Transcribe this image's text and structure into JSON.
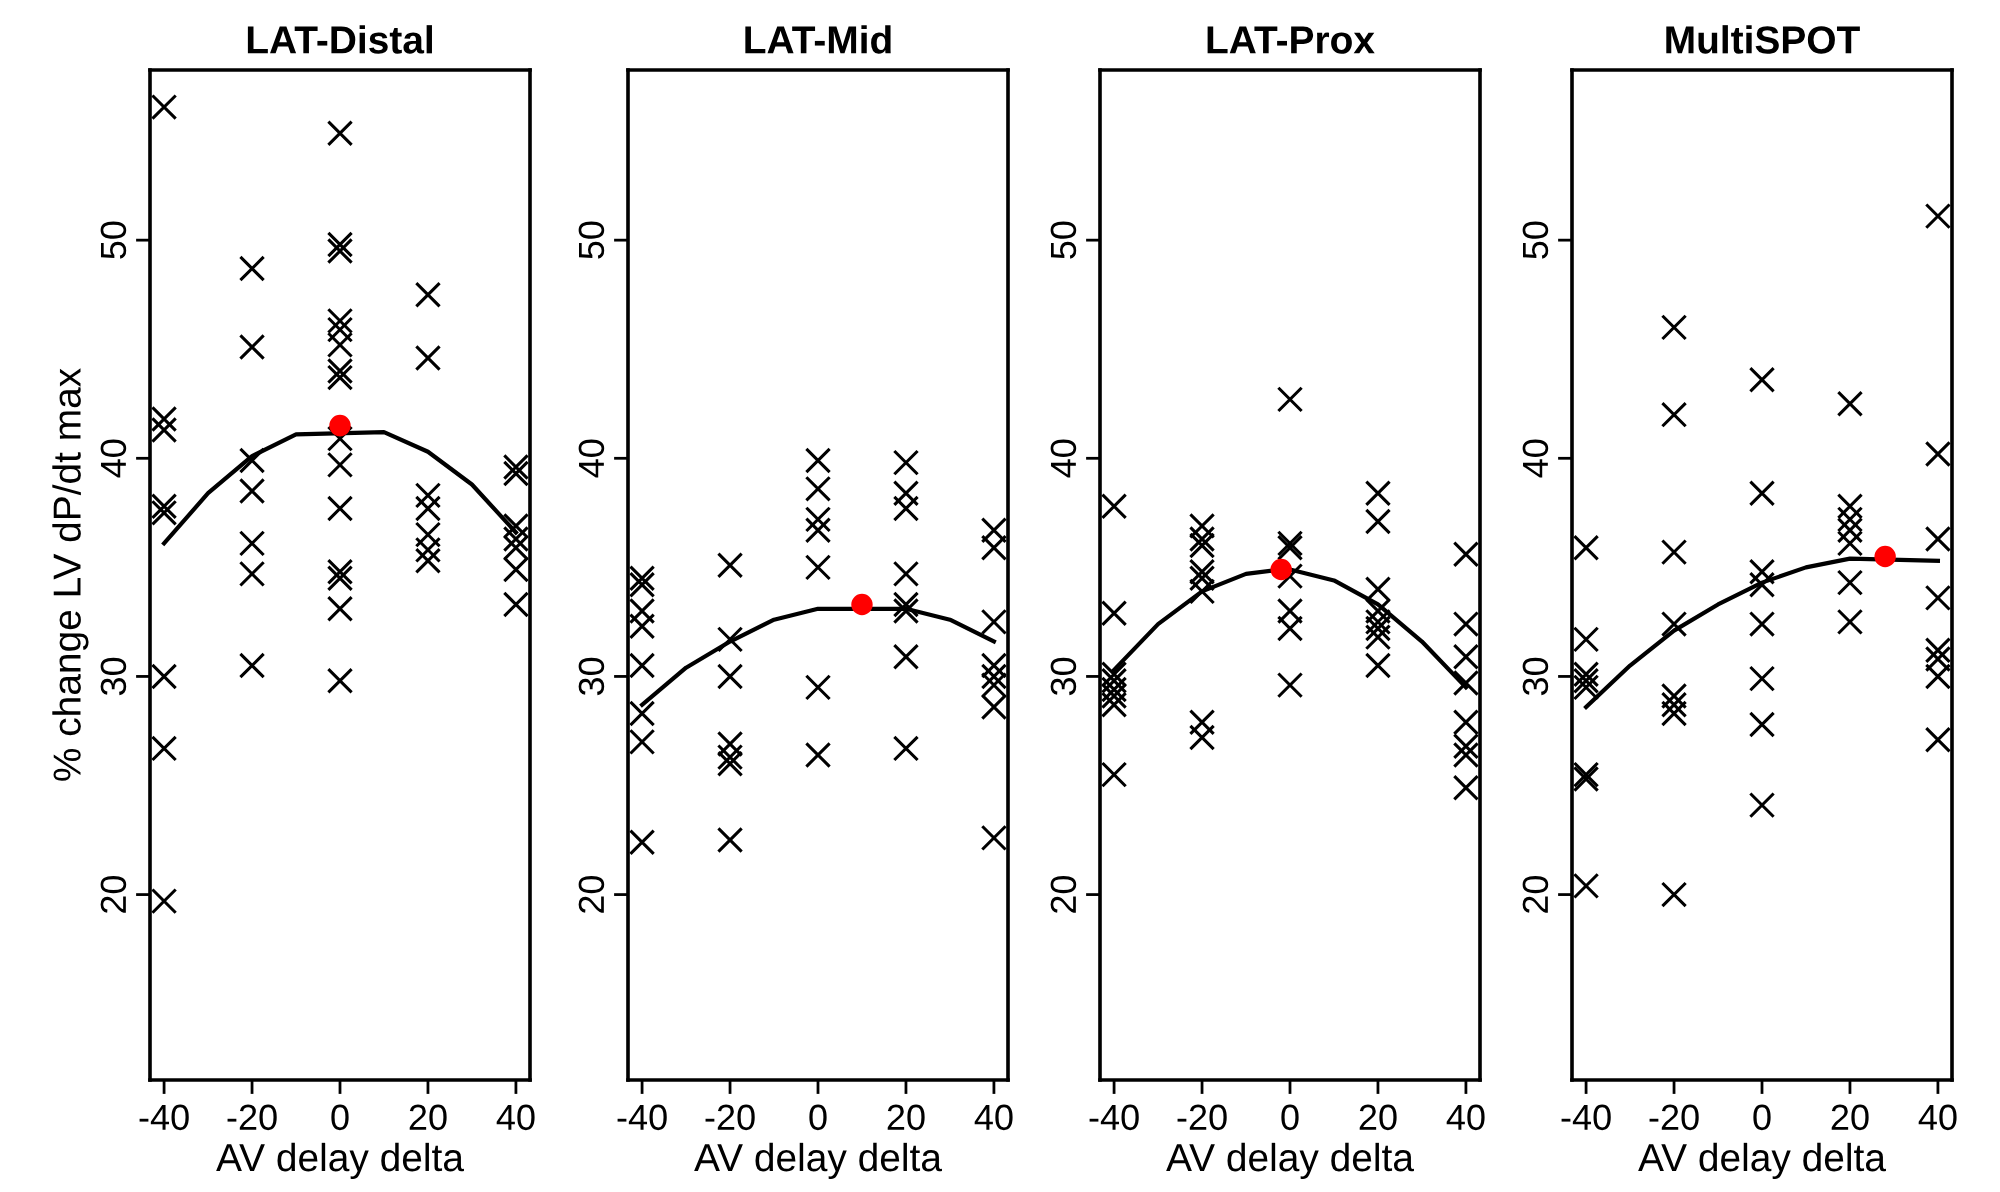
{
  "chart_data": [
    {
      "type": "scatter",
      "title": "LAT-Distal",
      "xlabel": "AV delay delta",
      "ylabel": "% change LV dP/dt max",
      "xlim": [
        -43.2,
        43.2
      ],
      "xticks": [
        -40,
        -20,
        0,
        20,
        40
      ],
      "ylim": [
        11.5,
        57.8
      ],
      "yticks": [
        20,
        30,
        40,
        50
      ],
      "grid": false,
      "legend": false,
      "series": [
        {
          "type": "scatter",
          "marker": "cross",
          "color": "#000000",
          "x": [
            -40,
            -40,
            -40,
            -40,
            -40,
            -40,
            -40,
            -40,
            -20,
            -20,
            -20,
            -20,
            -20,
            -20,
            -20,
            0,
            0,
            0,
            0,
            0,
            0,
            0,
            0,
            0,
            0,
            0,
            0,
            0,
            0,
            0,
            20,
            20,
            20,
            20,
            20,
            20,
            20,
            40,
            40,
            40,
            40,
            40,
            40,
            40
          ],
          "values": [
            56.1,
            41.8,
            41.3,
            37.8,
            37.5,
            30.0,
            26.7,
            19.7,
            48.7,
            45.1,
            39.9,
            38.5,
            36.1,
            34.7,
            30.5,
            54.9,
            49.8,
            49.5,
            46.3,
            45.9,
            45.2,
            44.0,
            43.7,
            40.9,
            39.7,
            37.7,
            34.8,
            34.5,
            33.1,
            29.8,
            47.5,
            44.6,
            38.3,
            37.7,
            36.5,
            35.8,
            35.3,
            39.6,
            39.3,
            36.9,
            36.3,
            35.9,
            34.9,
            33.3
          ]
        },
        {
          "type": "line",
          "color": "#000000",
          "x": [
            -40,
            -30,
            -20,
            -10,
            10,
            20,
            30,
            40
          ],
          "values": [
            36.1,
            38.4,
            40.1,
            41.1,
            41.2,
            40.3,
            38.8,
            36.6
          ]
        },
        {
          "type": "scatter",
          "marker": "circle",
          "color": "#ff0000",
          "x": [
            0
          ],
          "values": [
            41.5
          ]
        }
      ]
    },
    {
      "type": "scatter",
      "title": "LAT-Mid",
      "xlabel": "AV delay delta",
      "xlim": [
        -43.2,
        43.2
      ],
      "xticks": [
        -40,
        -20,
        0,
        20,
        40
      ],
      "ylim": [
        11.5,
        57.8
      ],
      "yticks": [
        20,
        30,
        40,
        50
      ],
      "grid": false,
      "legend": false,
      "series": [
        {
          "type": "scatter",
          "marker": "cross",
          "color": "#000000",
          "x": [
            -40,
            -40,
            -40,
            -40,
            -40,
            -40,
            -40,
            -40,
            -20,
            -20,
            -20,
            -20,
            -20,
            -20,
            -20,
            0,
            0,
            0,
            0,
            0,
            0,
            0,
            20,
            20,
            20,
            20,
            20,
            20,
            20,
            20,
            40,
            40,
            40,
            40,
            40,
            40,
            40,
            40
          ],
          "values": [
            34.5,
            34.2,
            33.0,
            32.3,
            30.5,
            28.3,
            27.0,
            22.4,
            35.1,
            31.7,
            30.0,
            26.9,
            26.3,
            26.0,
            22.5,
            39.9,
            38.6,
            37.2,
            36.7,
            35.0,
            29.5,
            26.4,
            39.8,
            38.4,
            37.7,
            34.7,
            33.3,
            33.0,
            30.9,
            26.7,
            36.7,
            35.9,
            32.5,
            30.5,
            30.0,
            29.6,
            28.6,
            22.6
          ]
        },
        {
          "type": "line",
          "color": "#000000",
          "x": [
            -40,
            -30,
            -20,
            -10,
            0,
            20,
            30,
            40
          ],
          "values": [
            28.7,
            30.4,
            31.6,
            32.6,
            33.1,
            33.1,
            32.6,
            31.6
          ]
        },
        {
          "type": "scatter",
          "marker": "circle",
          "color": "#ff0000",
          "x": [
            10
          ],
          "values": [
            33.3
          ]
        }
      ]
    },
    {
      "type": "scatter",
      "title": "LAT-Prox",
      "xlabel": "AV delay delta",
      "xlim": [
        -43.2,
        43.2
      ],
      "xticks": [
        -40,
        -20,
        0,
        20,
        40
      ],
      "ylim": [
        11.5,
        57.8
      ],
      "yticks": [
        20,
        30,
        40,
        50
      ],
      "grid": false,
      "legend": false,
      "series": [
        {
          "type": "scatter",
          "marker": "cross",
          "color": "#000000",
          "x": [
            -40,
            -40,
            -40,
            -40,
            -40,
            -40,
            -40,
            -40,
            -20,
            -20,
            -20,
            -20,
            -20,
            -20,
            -20,
            -20,
            0,
            0,
            0,
            0,
            0,
            0,
            0,
            20,
            20,
            20,
            20,
            20,
            20,
            20,
            20,
            40,
            40,
            40,
            40,
            40,
            40,
            40,
            40
          ],
          "values": [
            37.8,
            32.9,
            30.1,
            29.8,
            29.4,
            29.1,
            28.7,
            25.5,
            36.9,
            36.3,
            36.0,
            34.8,
            34.5,
            33.9,
            27.9,
            27.2,
            42.7,
            36.1,
            35.9,
            34.6,
            33.0,
            32.2,
            29.6,
            38.4,
            37.1,
            34.0,
            33.0,
            32.5,
            32.2,
            31.8,
            30.5,
            35.6,
            32.4,
            30.9,
            29.7,
            27.9,
            26.8,
            26.4,
            24.9
          ]
        },
        {
          "type": "line",
          "color": "#000000",
          "x": [
            -40,
            -30,
            -20,
            -10,
            -2,
            0,
            10,
            20,
            30,
            40
          ],
          "values": [
            30.3,
            32.4,
            33.9,
            34.7,
            34.9,
            34.9,
            34.4,
            33.3,
            31.6,
            29.5
          ]
        },
        {
          "type": "scatter",
          "marker": "circle",
          "color": "#ff0000",
          "x": [
            -2
          ],
          "values": [
            34.9
          ]
        }
      ]
    },
    {
      "type": "scatter",
      "title": "MultiSPOT",
      "xlabel": "AV delay delta",
      "xlim": [
        -43.2,
        43.2
      ],
      "xticks": [
        -40,
        -20,
        0,
        20,
        40
      ],
      "ylim": [
        11.5,
        57.8
      ],
      "yticks": [
        20,
        30,
        40,
        50
      ],
      "grid": false,
      "legend": false,
      "series": [
        {
          "type": "scatter",
          "marker": "cross",
          "color": "#000000",
          "x": [
            -40,
            -40,
            -40,
            -40,
            -40,
            -40,
            -40,
            -40,
            -20,
            -20,
            -20,
            -20,
            -20,
            -20,
            -20,
            -20,
            0,
            0,
            0,
            0,
            0,
            0,
            0,
            0,
            20,
            20,
            20,
            20,
            20,
            20,
            20,
            40,
            40,
            40,
            40,
            40,
            40,
            40,
            40
          ],
          "values": [
            35.9,
            31.7,
            30.1,
            29.8,
            29.5,
            25.5,
            25.3,
            20.4,
            46.0,
            42.0,
            35.7,
            32.4,
            29.1,
            28.7,
            28.3,
            20.0,
            43.6,
            38.4,
            34.8,
            34.2,
            32.4,
            29.9,
            27.8,
            24.1,
            42.5,
            37.8,
            37.2,
            36.7,
            36.1,
            34.3,
            32.5,
            51.1,
            40.2,
            36.3,
            33.6,
            31.2,
            30.8,
            30.0,
            27.1
          ]
        },
        {
          "type": "line",
          "color": "#000000",
          "x": [
            -40,
            -30,
            -20,
            -10,
            0,
            10,
            20,
            40
          ],
          "values": [
            28.6,
            30.5,
            32.1,
            33.3,
            34.3,
            35.0,
            35.4,
            35.3
          ]
        },
        {
          "type": "scatter",
          "marker": "circle",
          "color": "#ff0000",
          "x": [
            28
          ],
          "values": [
            35.5
          ]
        }
      ]
    }
  ]
}
